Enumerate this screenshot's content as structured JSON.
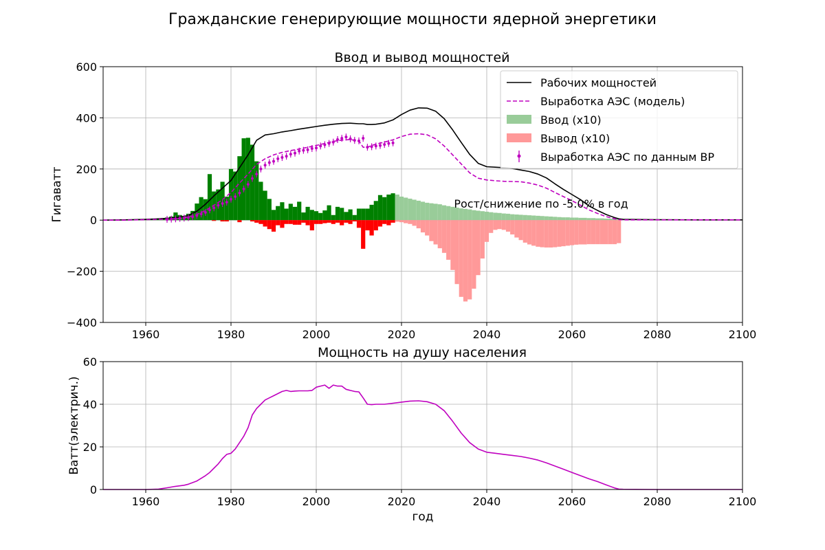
{
  "figure": {
    "suptitle": "Гражданские генерирующие мощности ядерной энергетики"
  },
  "colors": {
    "working": "#000000",
    "model": "#bf00bf",
    "bp": "#bf00bf",
    "input_hist": "#008000",
    "input_model": "#99cc99",
    "output_hist": "#ff0000",
    "output_model": "#ff9999",
    "grid": "#b0b0b0"
  },
  "chart_data": [
    {
      "type": "line",
      "title": "Ввод и вывод мощностей",
      "xlabel": "",
      "ylabel": "Гигаватт",
      "xlim": [
        1950,
        2100
      ],
      "ylim": [
        -400,
        600
      ],
      "xticks": [
        1960,
        1980,
        2000,
        2020,
        2040,
        2060,
        2080,
        2100
      ],
      "yticks": [
        -400,
        -200,
        0,
        200,
        400,
        600
      ],
      "xtick_labels": [
        "1960",
        "1980",
        "2000",
        "2020",
        "2040",
        "2060",
        "2080",
        "2100"
      ],
      "ytick_labels": [
        "−400",
        "−200",
        "0",
        "200",
        "400",
        "600"
      ],
      "grid": true,
      "legend_position": "top-right",
      "annotation": "Рост/снижение по -5.0% в год",
      "legend": [
        "Рабочих мощностей",
        "Выработка АЭС (модель)",
        "Ввод (x10)",
        "Вывод (x10)",
        "Выработка АЭС по данным BP"
      ],
      "series": [
        {
          "name": "Рабочих мощностей",
          "kind": "line",
          "x": [
            1950,
            1955,
            1960,
            1963,
            1966,
            1968,
            1970,
            1972,
            1974,
            1976,
            1978,
            1980,
            1982,
            1984,
            1986,
            1988,
            1990,
            1992,
            1994,
            1996,
            1998,
            2000,
            2002,
            2004,
            2006,
            2008,
            2010,
            2011,
            2012,
            2013,
            2014,
            2016,
            2018,
            2020,
            2022,
            2024,
            2026,
            2028,
            2030,
            2032,
            2034,
            2036,
            2038,
            2040,
            2042,
            2044,
            2046,
            2048,
            2050,
            2052,
            2054,
            2056,
            2058,
            2060,
            2062,
            2064,
            2066,
            2068,
            2070,
            2071,
            2072,
            2080,
            2090,
            2100
          ],
          "y": [
            0,
            1,
            3,
            5,
            8,
            12,
            18,
            35,
            62,
            95,
            125,
            155,
            205,
            255,
            312,
            333,
            338,
            345,
            350,
            356,
            361,
            366,
            371,
            375,
            378,
            379,
            377,
            377,
            374,
            374,
            375,
            380,
            392,
            413,
            430,
            439,
            438,
            426,
            397,
            353,
            304,
            257,
            222,
            209,
            207,
            205,
            202,
            196,
            190,
            180,
            165,
            142,
            120,
            100,
            80,
            55,
            38,
            22,
            10,
            5,
            3,
            2,
            1,
            1
          ]
        },
        {
          "name": "Выработка АЭС (модель)",
          "kind": "line",
          "x": [
            1950,
            1955,
            1960,
            1963,
            1966,
            1968,
            1970,
            1972,
            1974,
            1976,
            1978,
            1980,
            1982,
            1984,
            1986,
            1988,
            1990,
            1992,
            1994,
            1996,
            1998,
            2000,
            2002,
            2004,
            2006,
            2008,
            2010,
            2011,
            2012,
            2013,
            2014,
            2016,
            2018,
            2020,
            2022,
            2024,
            2026,
            2028,
            2030,
            2032,
            2034,
            2036,
            2038,
            2040,
            2042,
            2044,
            2046,
            2048,
            2050,
            2052,
            2054,
            2056,
            2058,
            2060,
            2062,
            2064,
            2066,
            2068,
            2070,
            2071,
            2072,
            2080,
            2090,
            2100
          ],
          "y": [
            0,
            0,
            2,
            3,
            5,
            7,
            12,
            22,
            38,
            58,
            80,
            108,
            145,
            180,
            218,
            240,
            255,
            265,
            272,
            278,
            285,
            292,
            300,
            308,
            313,
            315,
            310,
            285,
            285,
            292,
            297,
            305,
            314,
            327,
            336,
            338,
            334,
            318,
            290,
            255,
            220,
            185,
            164,
            157,
            154,
            152,
            151,
            150,
            145,
            137,
            125,
            108,
            92,
            76,
            58,
            40,
            26,
            14,
            5,
            2,
            1,
            1,
            1,
            1
          ]
        },
        {
          "name": "Выработка АЭС по данным BP",
          "kind": "errorbar",
          "x": [
            1965,
            1966,
            1967,
            1968,
            1969,
            1970,
            1971,
            1972,
            1973,
            1974,
            1975,
            1976,
            1977,
            1978,
            1979,
            1980,
            1981,
            1982,
            1983,
            1984,
            1985,
            1986,
            1987,
            1988,
            1989,
            1990,
            1991,
            1992,
            1993,
            1994,
            1995,
            1996,
            1997,
            1998,
            1999,
            2000,
            2001,
            2002,
            2003,
            2004,
            2005,
            2006,
            2007,
            2008,
            2009,
            2010,
            2011,
            2012,
            2013,
            2014,
            2015,
            2016,
            2017,
            2018
          ],
          "y": [
            3,
            4,
            5,
            7,
            8,
            10,
            13,
            18,
            24,
            30,
            40,
            48,
            58,
            65,
            70,
            82,
            92,
            106,
            122,
            140,
            163,
            180,
            200,
            215,
            225,
            230,
            240,
            245,
            250,
            258,
            262,
            270,
            273,
            275,
            280,
            282,
            290,
            295,
            300,
            305,
            315,
            320,
            325,
            318,
            312,
            310,
            320,
            285,
            287,
            290,
            292,
            296,
            300,
            302
          ]
        },
        {
          "name": "Ввод (x10)",
          "kind": "bar",
          "period": "history",
          "x": [
            1954,
            1956,
            1957,
            1958,
            1959,
            1960,
            1961,
            1962,
            1963,
            1964,
            1965,
            1966,
            1967,
            1968,
            1969,
            1970,
            1971,
            1972,
            1973,
            1974,
            1975,
            1976,
            1977,
            1978,
            1979,
            1980,
            1981,
            1982,
            1983,
            1984,
            1985,
            1986,
            1987,
            1988,
            1989,
            1990,
            1991,
            1992,
            1993,
            1994,
            1995,
            1996,
            1997,
            1998,
            1999,
            2000,
            2001,
            2002,
            2003,
            2004,
            2005,
            2006,
            2007,
            2008,
            2009,
            2010,
            2011,
            2012,
            2013,
            2014,
            2015,
            2016,
            2017,
            2018
          ],
          "y": [
            1,
            1,
            2,
            2,
            3,
            2,
            5,
            4,
            6,
            8,
            10,
            14,
            30,
            20,
            12,
            25,
            36,
            65,
            90,
            82,
            180,
            112,
            120,
            150,
            92,
            200,
            190,
            250,
            320,
            322,
            295,
            230,
            150,
            115,
            83,
            40,
            55,
            70,
            45,
            64,
            52,
            72,
            30,
            52,
            40,
            35,
            28,
            38,
            58,
            20,
            52,
            48,
            32,
            42,
            20,
            45,
            45,
            45,
            60,
            75,
            98,
            90,
            100,
            105
          ]
        },
        {
          "name": "Вывод (x10)",
          "kind": "bar",
          "period": "history",
          "x": [
            1976,
            1978,
            1979,
            1982,
            1985,
            1986,
            1987,
            1988,
            1989,
            1990,
            1991,
            1992,
            1993,
            1994,
            1995,
            1996,
            1997,
            1998,
            1999,
            2000,
            2001,
            2002,
            2003,
            2004,
            2005,
            2006,
            2007,
            2008,
            2009,
            2010,
            2011,
            2012,
            2013,
            2014,
            2015,
            2016,
            2017,
            2018
          ],
          "y": [
            -3,
            -5,
            -5,
            -8,
            -5,
            -10,
            -15,
            -25,
            -35,
            -45,
            -20,
            -30,
            -15,
            -15,
            -18,
            -18,
            -10,
            -20,
            -40,
            -15,
            -15,
            -12,
            -10,
            -15,
            -10,
            -20,
            -10,
            -15,
            -5,
            -30,
            -112,
            -40,
            -60,
            -40,
            -25,
            -15,
            -20,
            -10
          ]
        },
        {
          "name": "Ввод (x10)",
          "kind": "bar",
          "period": "model",
          "x": [
            2019,
            2020,
            2021,
            2022,
            2023,
            2024,
            2025,
            2026,
            2027,
            2028,
            2029,
            2030,
            2031,
            2032,
            2033,
            2034,
            2035,
            2036,
            2037,
            2038,
            2039,
            2040,
            2041,
            2042,
            2043,
            2044,
            2045,
            2046,
            2047,
            2048,
            2049,
            2050,
            2051,
            2052,
            2053,
            2054,
            2055,
            2056,
            2057,
            2058,
            2059,
            2060,
            2061,
            2062,
            2063,
            2064,
            2065,
            2066,
            2067,
            2068,
            2069,
            2070,
            2071,
            2072
          ],
          "y": [
            100,
            92,
            88,
            84,
            80,
            76,
            72,
            68,
            66,
            64,
            62,
            58,
            55,
            52,
            49,
            46,
            44,
            42,
            39,
            37,
            35,
            33,
            31,
            29,
            28,
            26,
            25,
            23,
            22,
            21,
            20,
            19,
            18,
            17,
            16,
            15,
            14,
            13,
            12,
            11,
            11,
            10,
            10,
            9,
            9,
            8,
            8,
            7,
            7,
            6,
            6,
            5,
            5,
            5
          ]
        },
        {
          "name": "Вывод (x10)",
          "kind": "bar",
          "period": "model",
          "x": [
            2019,
            2020,
            2021,
            2022,
            2023,
            2024,
            2025,
            2026,
            2027,
            2028,
            2029,
            2030,
            2031,
            2032,
            2033,
            2034,
            2035,
            2036,
            2037,
            2038,
            2039,
            2040,
            2041,
            2042,
            2043,
            2044,
            2045,
            2046,
            2047,
            2048,
            2049,
            2050,
            2051,
            2052,
            2053,
            2054,
            2055,
            2056,
            2057,
            2058,
            2059,
            2060,
            2061,
            2062,
            2063,
            2064,
            2065,
            2066,
            2067,
            2068,
            2069,
            2070,
            2071
          ],
          "y": [
            -6,
            -8,
            -12,
            -15,
            -22,
            -32,
            -48,
            -60,
            -82,
            -95,
            -110,
            -128,
            -155,
            -195,
            -250,
            -300,
            -318,
            -310,
            -268,
            -215,
            -150,
            -85,
            -50,
            -38,
            -35,
            -38,
            -45,
            -56,
            -68,
            -78,
            -88,
            -95,
            -100,
            -104,
            -106,
            -107,
            -107,
            -106,
            -104,
            -102,
            -100,
            -98,
            -96,
            -95,
            -95,
            -94,
            -94,
            -94,
            -94,
            -94,
            -94,
            -94,
            -90
          ]
        }
      ]
    },
    {
      "type": "line",
      "title": "Мощность на душу населения",
      "xlabel": "год",
      "ylabel": "Ватт(электрич.)",
      "xlim": [
        1950,
        2100
      ],
      "ylim": [
        0,
        60
      ],
      "xticks": [
        1960,
        1980,
        2000,
        2020,
        2040,
        2060,
        2080,
        2100
      ],
      "yticks": [
        0,
        20,
        40,
        60
      ],
      "xtick_labels": [
        "1960",
        "1980",
        "2000",
        "2020",
        "2040",
        "2060",
        "2080",
        "2100"
      ],
      "ytick_labels": [
        "0",
        "20",
        "40",
        "60"
      ],
      "grid": true,
      "series": [
        {
          "kind": "line",
          "x": [
            1950,
            1955,
            1960,
            1963,
            1965,
            1967,
            1969,
            1970,
            1972,
            1974,
            1975,
            1976,
            1977,
            1978,
            1979,
            1980,
            1981,
            1982,
            1983,
            1984,
            1985,
            1986,
            1987,
            1988,
            1989,
            1990,
            1991,
            1992,
            1993,
            1994,
            1995,
            1996,
            1997,
            1998,
            1999,
            2000,
            2001,
            2002,
            2003,
            2004,
            2005,
            2006,
            2007,
            2008,
            2009,
            2010,
            2011,
            2012,
            2013,
            2014,
            2016,
            2018,
            2020,
            2022,
            2024,
            2026,
            2028,
            2030,
            2032,
            2034,
            2036,
            2038,
            2040,
            2042,
            2044,
            2046,
            2048,
            2050,
            2052,
            2054,
            2056,
            2058,
            2060,
            2062,
            2064,
            2066,
            2068,
            2070,
            2071,
            2072,
            2080,
            2090,
            2100
          ],
          "y": [
            0,
            0,
            0,
            0.2,
            0.8,
            1.5,
            2,
            2.5,
            4,
            6.5,
            8,
            10,
            12,
            14.5,
            16.5,
            17,
            19,
            22,
            25,
            29,
            35,
            38,
            40,
            42,
            43,
            44,
            45,
            46,
            46.5,
            46,
            46.2,
            46.3,
            46.3,
            46.3,
            46.5,
            48,
            48.5,
            49,
            47.5,
            49,
            48.5,
            48.5,
            47,
            46.5,
            46,
            45.8,
            43,
            40,
            39.8,
            40,
            40,
            40.5,
            41,
            41.5,
            41.6,
            41.2,
            40,
            37,
            32,
            26.5,
            22,
            19,
            17.5,
            17,
            16.5,
            16,
            15.5,
            14.7,
            13.8,
            12.5,
            11,
            9.5,
            8,
            6.5,
            5,
            3.7,
            2.2,
            0.7,
            0.2,
            0.1,
            0,
            0,
            0
          ]
        }
      ]
    }
  ]
}
